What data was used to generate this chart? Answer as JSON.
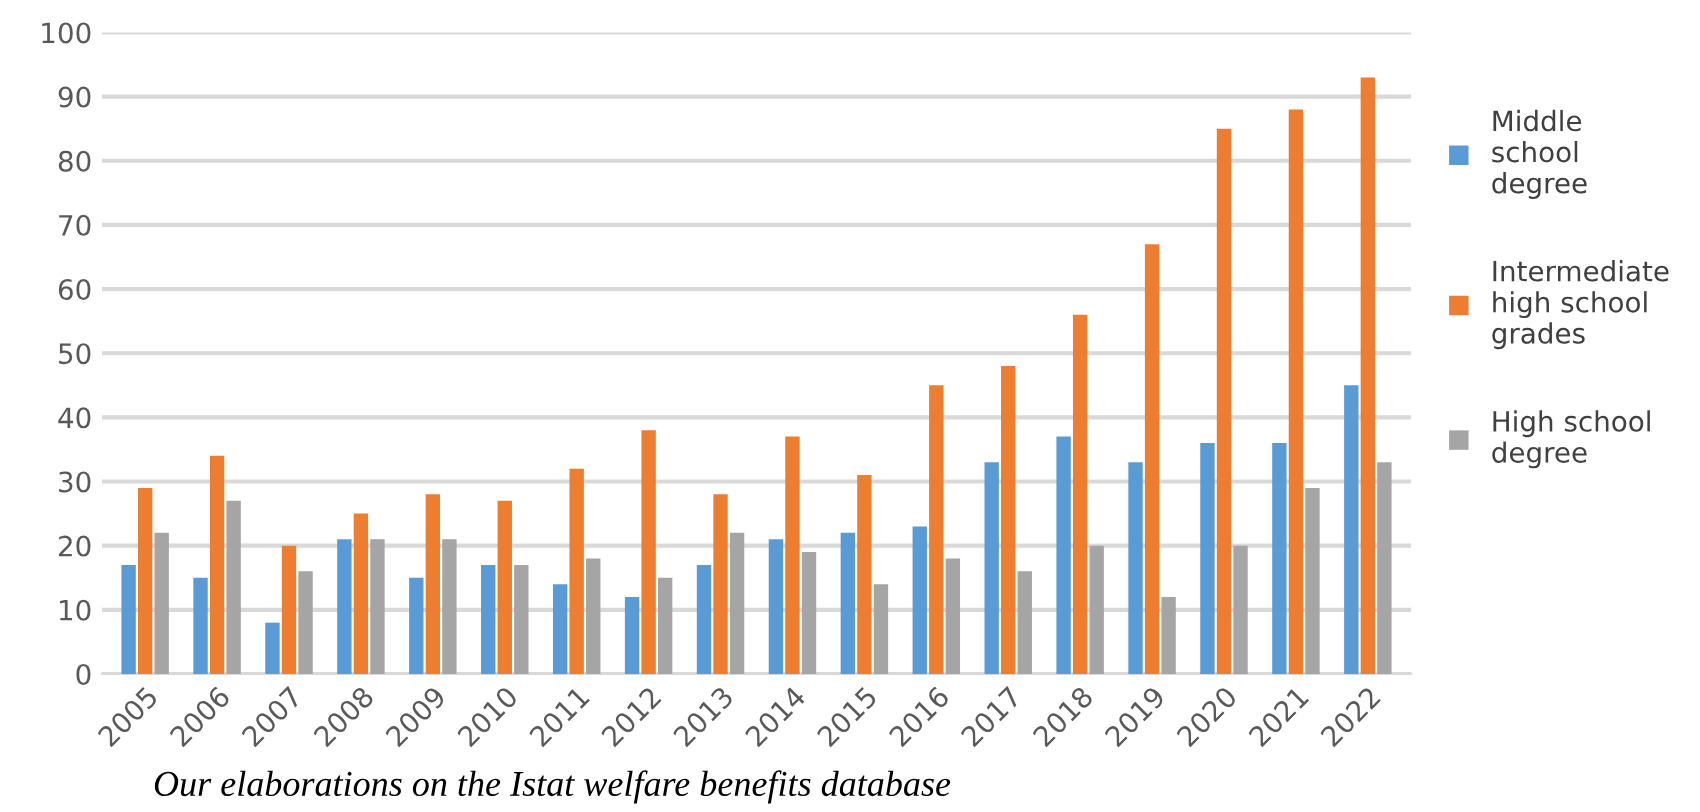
{
  "chart_data": {
    "type": "bar",
    "categories": [
      "2005",
      "2006",
      "2007",
      "2008",
      "2009",
      "2010",
      "2011",
      "2012",
      "2013",
      "2014",
      "2015",
      "2016",
      "2017",
      "2018",
      "2019",
      "2020",
      "2021",
      "2022"
    ],
    "series": [
      {
        "name": "Middle\nschool\ndegree",
        "color": "#5b9bd5",
        "values": [
          17,
          15,
          8,
          21,
          15,
          17,
          14,
          12,
          17,
          21,
          22,
          23,
          33,
          37,
          33,
          36,
          36,
          45
        ]
      },
      {
        "name": "Intermediate\nhigh school\ngrades",
        "color": "#ed7d31",
        "values": [
          29,
          34,
          20,
          25,
          28,
          27,
          32,
          38,
          28,
          37,
          31,
          45,
          48,
          56,
          67,
          85,
          88,
          93
        ]
      },
      {
        "name": "High school\ndegree",
        "color": "#a5a5a5",
        "values": [
          22,
          27,
          16,
          21,
          21,
          17,
          18,
          15,
          22,
          19,
          14,
          18,
          16,
          20,
          12,
          20,
          29,
          33
        ]
      }
    ],
    "ylim": [
      0,
      100
    ],
    "yticks": [
      0,
      10,
      20,
      30,
      40,
      50,
      60,
      70,
      80,
      90,
      100
    ],
    "grid": "y",
    "legend": "right",
    "annotations": [
      "Our elaborations on the Istat welfare benefits database"
    ]
  }
}
